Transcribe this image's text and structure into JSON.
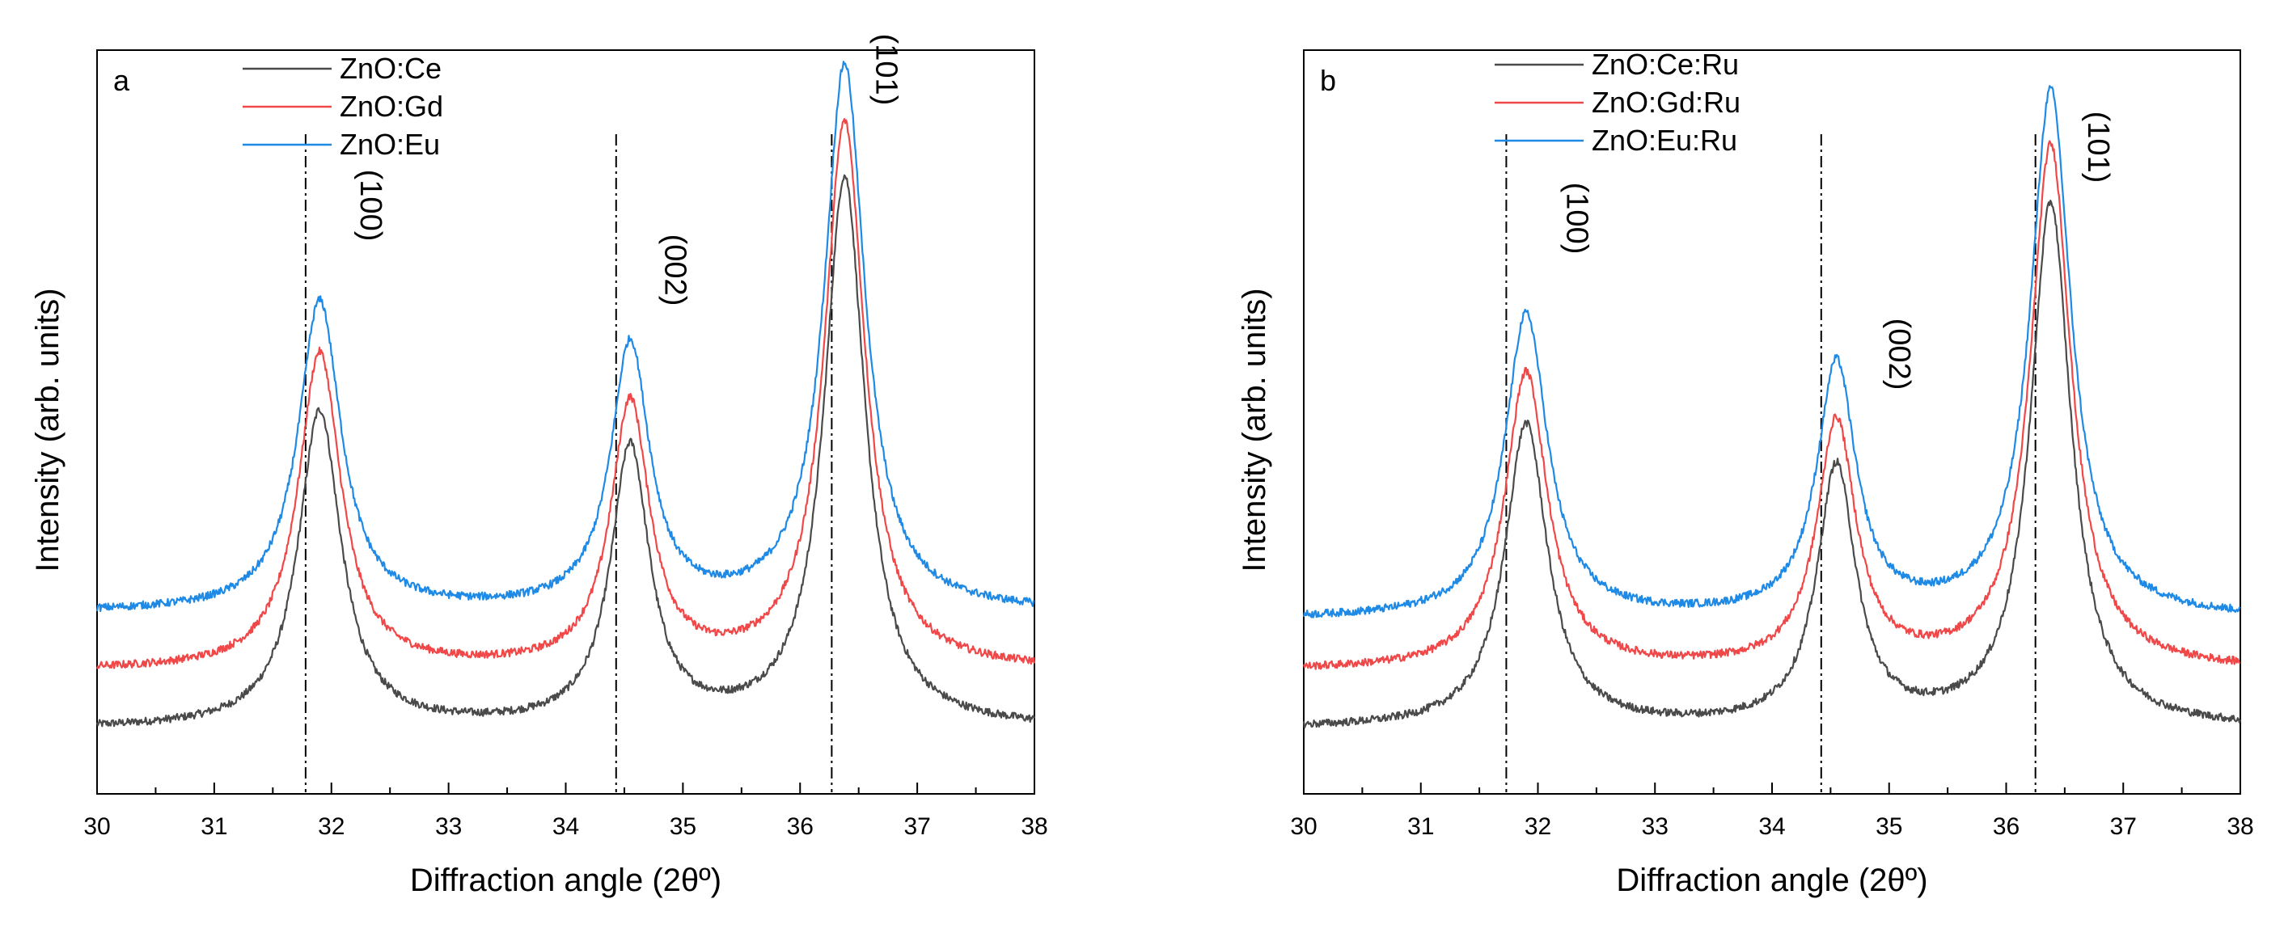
{
  "colors": {
    "black": "#4a4a4a",
    "red": "#f04848",
    "blue": "#1e8ae6",
    "axis": "#000000",
    "ref": "#000000"
  },
  "chart_data": [
    {
      "type": "line",
      "panel_label": "a",
      "title": "",
      "xlabel": "Diffraction angle (2θº)",
      "ylabel": "Intensity (arb. units)",
      "xlim": [
        30,
        38
      ],
      "ylim": [
        0,
        115
      ],
      "xticks": [
        "30",
        "31",
        "32",
        "33",
        "34",
        "35",
        "36",
        "37",
        "38"
      ],
      "grid": false,
      "legend_position": "top-center",
      "series": [
        {
          "name": "ZnO:Ce",
          "color": "black",
          "baseline": 10.0,
          "peaks": [
            [
              31.9,
              59.0,
              0.22
            ],
            [
              34.55,
              53.0,
              0.2
            ],
            [
              36.38,
              95.0,
              0.21
            ]
          ]
        },
        {
          "name": "ZnO:Gd",
          "color": "red",
          "baseline": 19.0,
          "peaks": [
            [
              31.9,
              68.0,
              0.22
            ],
            [
              34.55,
              60.0,
              0.2
            ],
            [
              36.38,
              103.5,
              0.21
            ]
          ]
        },
        {
          "name": "ZnO:Eu",
          "color": "blue",
          "baseline": 28.0,
          "peaks": [
            [
              31.9,
              76.0,
              0.22
            ],
            [
              34.55,
              69.0,
              0.2
            ],
            [
              36.38,
              112.5,
              0.21
            ]
          ]
        }
      ],
      "ref_lines": [
        31.78,
        34.43,
        36.27
      ],
      "ref_line_top": 102,
      "peak_labels": [
        {
          "text": "(100)",
          "x": 32.25,
          "y": 91
        },
        {
          "text": "(002)",
          "x": 34.85,
          "y": 81
        },
        {
          "text": "(101)",
          "x": 36.65,
          "y": 112
        }
      ]
    },
    {
      "type": "line",
      "panel_label": "b",
      "title": "",
      "xlabel": "Diffraction angle (2θº)",
      "ylabel": "Intensity (arb. units)",
      "xlim": [
        30,
        38
      ],
      "ylim": [
        0,
        115
      ],
      "xticks": [
        "30",
        "31",
        "32",
        "33",
        "34",
        "35",
        "36",
        "37",
        "38"
      ],
      "grid": false,
      "legend_position": "top-left",
      "series": [
        {
          "name": "ZnO:Ce:Ru",
          "color": "black",
          "baseline": 10.0,
          "peaks": [
            [
              31.9,
              57.0,
              0.22
            ],
            [
              34.55,
              50.0,
              0.2
            ],
            [
              36.38,
              91.0,
              0.21
            ]
          ]
        },
        {
          "name": "ZnO:Gd:Ru",
          "color": "red",
          "baseline": 19.0,
          "peaks": [
            [
              31.9,
              65.0,
              0.22
            ],
            [
              34.55,
              57.0,
              0.2
            ],
            [
              36.38,
              100.0,
              0.21
            ]
          ]
        },
        {
          "name": "ZnO:Eu:Ru",
          "color": "blue",
          "baseline": 27.0,
          "peaks": [
            [
              31.9,
              74.0,
              0.22
            ],
            [
              34.55,
              66.0,
              0.2
            ],
            [
              36.38,
              108.5,
              0.21
            ]
          ]
        }
      ],
      "ref_lines": [
        31.73,
        34.42,
        36.25
      ],
      "ref_line_top": 102,
      "peak_labels": [
        {
          "text": "(100)",
          "x": 32.25,
          "y": 89
        },
        {
          "text": "(002)",
          "x": 35.0,
          "y": 68
        },
        {
          "text": "(101)",
          "x": 36.7,
          "y": 100
        }
      ]
    }
  ]
}
